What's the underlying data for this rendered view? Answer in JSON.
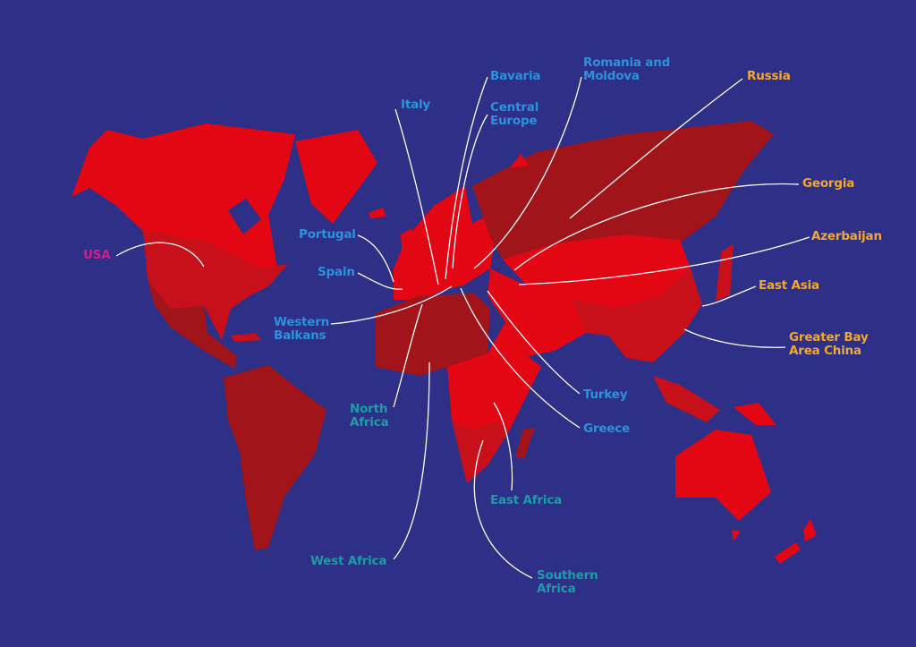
{
  "colors": {
    "background": "#2e2f87",
    "region_bright": "#e30613",
    "region_mid": "#c8101a",
    "region_dark": "#a0141a",
    "label_blue": "#2a93db",
    "label_orange": "#f0a830",
    "label_teal": "#1f9aa8",
    "label_magenta": "#d01e8c",
    "leader_line": "#ffffff"
  },
  "labels": [
    {
      "id": "usa",
      "text": "USA",
      "color": "magenta"
    },
    {
      "id": "portugal",
      "text": "Portugal",
      "color": "blue"
    },
    {
      "id": "spain",
      "text": "Spain",
      "color": "blue"
    },
    {
      "id": "western-balkans",
      "text": "Western\nBalkans",
      "color": "blue"
    },
    {
      "id": "italy",
      "text": "Italy",
      "color": "blue"
    },
    {
      "id": "bavaria",
      "text": "Bavaria",
      "color": "blue"
    },
    {
      "id": "central-europe",
      "text": "Central\nEurope",
      "color": "blue"
    },
    {
      "id": "romania-moldova",
      "text": "Romania and\nMoldova",
      "color": "blue"
    },
    {
      "id": "turkey",
      "text": "Turkey",
      "color": "blue"
    },
    {
      "id": "greece",
      "text": "Greece",
      "color": "blue"
    },
    {
      "id": "russia",
      "text": "Russia",
      "color": "orange"
    },
    {
      "id": "georgia",
      "text": "Georgia",
      "color": "orange"
    },
    {
      "id": "azerbaijan",
      "text": "Azerbaijan",
      "color": "orange"
    },
    {
      "id": "east-asia",
      "text": "East Asia",
      "color": "orange"
    },
    {
      "id": "greater-bay",
      "text": "Greater Bay\nArea China",
      "color": "orange"
    },
    {
      "id": "north-africa",
      "text": "North\nAfrica",
      "color": "teal"
    },
    {
      "id": "west-africa",
      "text": "West Africa",
      "color": "teal"
    },
    {
      "id": "east-africa",
      "text": "East Africa",
      "color": "teal"
    },
    {
      "id": "southern-africa",
      "text": "Southern\nAfrica",
      "color": "teal"
    }
  ]
}
